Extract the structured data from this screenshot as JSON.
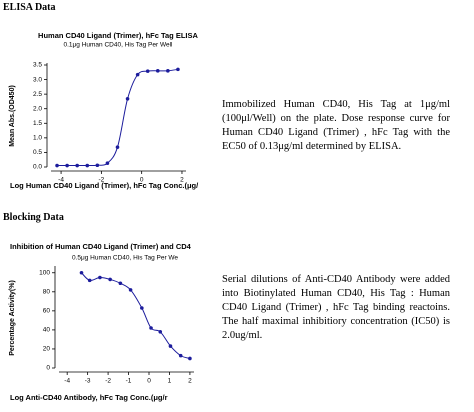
{
  "sections": [
    {
      "heading": "ELISA Data",
      "description": "Immobilized Human CD40, His Tag at 1μg/ml (100μl/Well) on the plate. Dose response curve for Human CD40 Ligand (Trimer) , hFc Tag with the EC50 of 0.13μg/ml determined by ELISA."
    },
    {
      "heading": "Blocking Data",
      "description": "Serial dilutions of Anti-CD40 Antibody were added into Biotinylated Human CD40, His Tag : Human CD40 Ligand (Trimer) , hFc Tag binding reactoins. The half maximal inhibitiory concentration (IC50) is 2.0ug/ml."
    }
  ],
  "chart_data": [
    {
      "type": "scatter",
      "title": "Human CD40 Ligand (Trimer), hFc Tag ELISA",
      "subtitle": "0.1μg Human CD40, His Tag Per Well",
      "y_label": "Mean Abs.(OD450)",
      "x_label": "Log Human CD40 Ligand (Trimer), hFc Tag Conc.(μg/",
      "x": [
        -4.2,
        -3.7,
        -3.2,
        -2.7,
        -2.2,
        -1.7,
        -1.2,
        -0.7,
        -0.2,
        0.3,
        0.8,
        1.3,
        1.8
      ],
      "values": [
        0.05,
        0.05,
        0.05,
        0.05,
        0.06,
        0.13,
        0.68,
        2.34,
        3.17,
        3.29,
        3.3,
        3.3,
        3.35
      ],
      "color": "#1c1c9c",
      "fit_line": true,
      "xlim": [
        -4.5,
        2.2
      ],
      "xticks": [
        -4,
        -2,
        0,
        2
      ],
      "ylim": [
        0,
        3.5
      ],
      "yticks": [
        {
          "value": 0,
          "label": "0.0"
        },
        {
          "value": 0.5,
          "label": "0.5"
        },
        {
          "value": 1,
          "label": "1.0"
        },
        {
          "value": 1.5,
          "label": "1.5"
        },
        {
          "value": 2,
          "label": "2.0"
        },
        {
          "value": 2.5,
          "label": "2.5"
        },
        {
          "value": 3,
          "label": "3.0"
        },
        {
          "value": 3.5,
          "label": "3.5"
        }
      ]
    },
    {
      "type": "scatter",
      "title": "Inhibition of Human CD40 Ligand (Trimer) and CD4",
      "subtitle": "0.5μg Human CD40, His Tag Per We",
      "y_label": "Percentage Activity(%)",
      "x_label": "Log Anti-CD40 Antibody, hFc Tag Conc.(μg/r",
      "x": [
        -3.3,
        -2.9,
        -2.4,
        -1.9,
        -1.4,
        -0.9,
        -0.35,
        0.1,
        0.55,
        1.05,
        1.55,
        2.0
      ],
      "values": [
        100,
        92,
        95,
        93,
        89,
        82,
        63,
        42,
        38,
        23,
        13,
        10
      ],
      "color": "#1c1c9c",
      "fit_line": true,
      "xlim": [
        -4.4,
        2.2
      ],
      "xticks": [
        -4,
        -3,
        -2,
        -1,
        0,
        1,
        2
      ],
      "ylim": [
        0,
        105
      ],
      "yticks": [
        0,
        20,
        40,
        60,
        80,
        100
      ]
    }
  ]
}
